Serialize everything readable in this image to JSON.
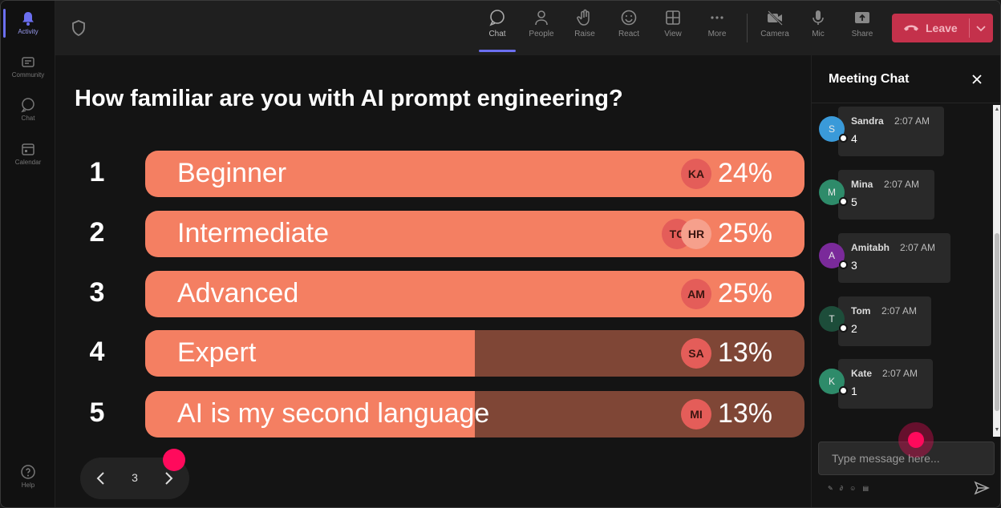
{
  "rail": {
    "items": [
      {
        "label": "Activity",
        "icon": "bell-icon"
      },
      {
        "label": "Community",
        "icon": "community-icon"
      },
      {
        "label": "Chat",
        "icon": "chat-icon"
      },
      {
        "label": "Calendar",
        "icon": "calendar-icon"
      },
      {
        "label": "Help",
        "icon": "help-icon"
      }
    ]
  },
  "toolbar": {
    "buttons": [
      {
        "label": "Chat",
        "icon": "chat-icon"
      },
      {
        "label": "People",
        "icon": "people-icon"
      },
      {
        "label": "Raise",
        "icon": "hand-icon"
      },
      {
        "label": "React",
        "icon": "smile-icon"
      },
      {
        "label": "View",
        "icon": "grid-icon"
      },
      {
        "label": "More",
        "icon": "more-icon"
      },
      {
        "label": "Camera",
        "icon": "camera-off-icon"
      },
      {
        "label": "Mic",
        "icon": "mic-icon"
      },
      {
        "label": "Share",
        "icon": "share-icon"
      }
    ],
    "leave_label": "Leave",
    "leave_color": "#c4314b"
  },
  "poll": {
    "question": "How familiar are you with AI prompt engineering?",
    "options": [
      {
        "number": "1",
        "label": "Beginner",
        "percent": "24%",
        "avatars": [
          "KA"
        ]
      },
      {
        "number": "2",
        "label": "Intermediate",
        "percent": "25%",
        "avatars": [
          "TC",
          "HR"
        ]
      },
      {
        "number": "3",
        "label": "Advanced",
        "percent": "25%",
        "avatars": [
          "AM"
        ]
      },
      {
        "number": "4",
        "label": "Expert",
        "percent": "13%",
        "avatars": [
          "SA"
        ]
      },
      {
        "number": "5",
        "label": "AI is my second language",
        "percent": "13%",
        "avatars": [
          "MI"
        ]
      }
    ],
    "bar_color": "#f47f62",
    "bar_dim_color": "#7f4636",
    "page": "3"
  },
  "chat": {
    "title": "Meeting Chat",
    "messages": [
      {
        "initial": "S",
        "name": "Sandra",
        "time": "2:07 AM",
        "text": "4",
        "color": "#3a9ad9"
      },
      {
        "initial": "M",
        "name": "Mina",
        "time": "2:07 AM",
        "text": "5",
        "color": "#2e8b6a"
      },
      {
        "initial": "A",
        "name": "Amitabh",
        "time": "2:07 AM",
        "text": "3",
        "color": "#7a2a9a"
      },
      {
        "initial": "T",
        "name": "Tom",
        "time": "2:07 AM",
        "text": "2",
        "color": "#1d4d3a"
      },
      {
        "initial": "K",
        "name": "Kate",
        "time": "2:07 AM",
        "text": "1",
        "color": "#2e8b6a"
      }
    ],
    "placeholder": "Type message here..."
  }
}
